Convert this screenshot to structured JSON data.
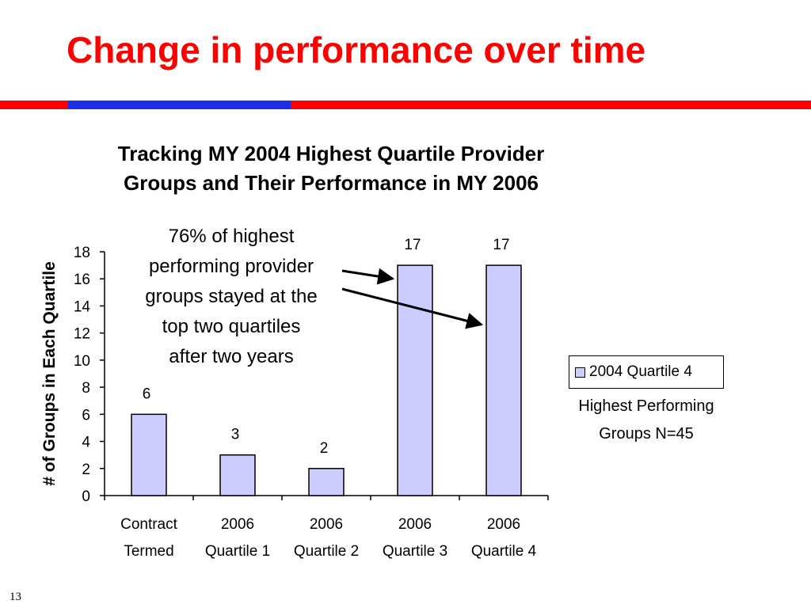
{
  "slide": {
    "title": "Change in performance over time",
    "page_number": "13",
    "colors": {
      "title": "#ff0000",
      "rule_red": "#ff0000",
      "rule_blue": "#1c2de8"
    }
  },
  "chart_data": {
    "type": "bar",
    "title": "Tracking MY 2004 Highest Quartile Provider Groups and Their Performance in MY 2006",
    "ylabel": "# of Groups in Each Quartile",
    "xlabel": "",
    "categories": [
      [
        "Contract",
        "Termed"
      ],
      [
        "2006",
        "Quartile 1"
      ],
      [
        "2006",
        "Quartile 2"
      ],
      [
        "2006",
        "Quartile 3"
      ],
      [
        "2006",
        "Quartile 4"
      ]
    ],
    "series": [
      {
        "name": "2004 Quartile 4",
        "values": [
          6,
          3,
          2,
          17,
          17
        ],
        "color": "#ccccff"
      }
    ],
    "data_labels": [
      "6",
      "3",
      "2",
      "17",
      "17"
    ],
    "ylim": [
      0,
      18
    ],
    "yticks": [
      "0",
      "2",
      "4",
      "6",
      "8",
      "10",
      "12",
      "14",
      "16",
      "18"
    ],
    "grid": false,
    "legend": {
      "position": "right",
      "entry": "2004 Quartile 4",
      "note": [
        "Highest Performing",
        "Groups N=45"
      ]
    },
    "annotation": {
      "lines": [
        "76% of highest",
        "performing provider",
        "groups stayed at the",
        "top two quartiles",
        "after two years"
      ],
      "points_to_categories": [
        3,
        4
      ]
    }
  }
}
